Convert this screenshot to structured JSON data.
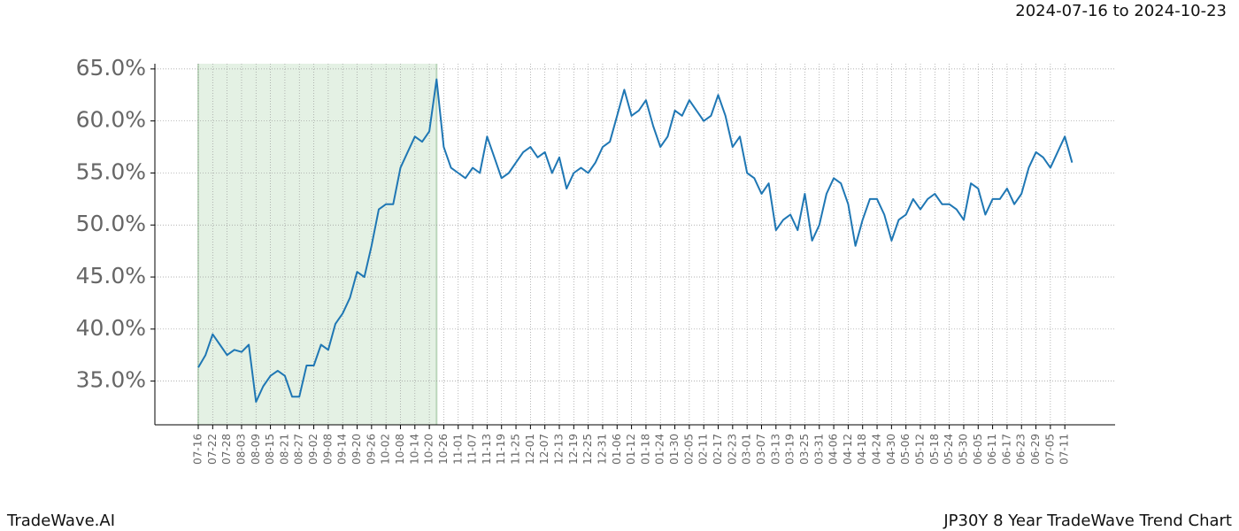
{
  "chart_data": {
    "type": "line",
    "title": "JP30Y 8 Year TradeWave Trend Chart",
    "subtitle": "2024-07-16 to 2024-10-23",
    "brand": "TradeWave.AI",
    "color": "#1f77b4",
    "highlight": [
      "07-16",
      "10-23"
    ],
    "highlight_color": "#d5e9d5",
    "grid": true,
    "ylim": [
      30.8,
      65.5
    ],
    "yticks": [
      {
        "value": 35,
        "label": "35.0%"
      },
      {
        "value": 40,
        "label": "40.0%"
      },
      {
        "value": 45,
        "label": "45.0%"
      },
      {
        "value": 50,
        "label": "50.0%"
      },
      {
        "value": 55,
        "label": "55.0%"
      },
      {
        "value": 60,
        "label": "60.0%"
      },
      {
        "value": 65,
        "label": "65.0%"
      }
    ],
    "xticks": [
      "07-16",
      "07-22",
      "07-28",
      "08-03",
      "08-09",
      "08-15",
      "08-21",
      "08-27",
      "09-02",
      "09-08",
      "09-14",
      "09-20",
      "09-26",
      "10-02",
      "10-08",
      "10-14",
      "10-20",
      "10-26",
      "11-01",
      "11-07",
      "11-13",
      "11-19",
      "11-25",
      "12-01",
      "12-07",
      "12-13",
      "12-19",
      "12-25",
      "12-31",
      "01-06",
      "01-12",
      "01-18",
      "01-24",
      "01-30",
      "02-05",
      "02-11",
      "02-17",
      "02-23",
      "03-01",
      "03-07",
      "03-13",
      "03-19",
      "03-25",
      "03-31",
      "04-06",
      "04-12",
      "04-18",
      "04-24",
      "04-30",
      "05-06",
      "05-12",
      "05-18",
      "05-24",
      "05-30",
      "06-05",
      "06-11",
      "06-17",
      "06-23",
      "06-29",
      "07-05",
      "07-11"
    ],
    "x": [
      "07-16",
      "07-19",
      "07-22",
      "07-25",
      "07-28",
      "07-31",
      "08-03",
      "08-06",
      "08-09",
      "08-12",
      "08-15",
      "08-18",
      "08-21",
      "08-24",
      "08-27",
      "08-30",
      "09-02",
      "09-05",
      "09-08",
      "09-11",
      "09-14",
      "09-17",
      "09-20",
      "09-23",
      "09-26",
      "09-29",
      "10-02",
      "10-05",
      "10-08",
      "10-11",
      "10-14",
      "10-17",
      "10-20",
      "10-23",
      "10-26",
      "10-29",
      "11-01",
      "11-04",
      "11-07",
      "11-10",
      "11-13",
      "11-16",
      "11-19",
      "11-22",
      "11-25",
      "11-28",
      "12-01",
      "12-04",
      "12-07",
      "12-10",
      "12-13",
      "12-16",
      "12-19",
      "12-22",
      "12-25",
      "12-28",
      "12-31",
      "01-03",
      "01-06",
      "01-09",
      "01-12",
      "01-15",
      "01-18",
      "01-21",
      "01-24",
      "01-27",
      "01-30",
      "02-02",
      "02-05",
      "02-08",
      "02-11",
      "02-14",
      "02-17",
      "02-20",
      "02-23",
      "02-26",
      "03-01",
      "03-04",
      "03-07",
      "03-10",
      "03-13",
      "03-16",
      "03-19",
      "03-22",
      "03-25",
      "03-28",
      "03-31",
      "04-03",
      "04-06",
      "04-09",
      "04-12",
      "04-15",
      "04-18",
      "04-21",
      "04-24",
      "04-27",
      "04-30",
      "05-03",
      "05-06",
      "05-09",
      "05-12",
      "05-15",
      "05-18",
      "05-21",
      "05-24",
      "05-27",
      "05-30",
      "06-02",
      "06-05",
      "06-08",
      "06-11",
      "06-14",
      "06-17",
      "06-20",
      "06-23",
      "06-26",
      "06-29",
      "07-02",
      "07-05",
      "07-08",
      "07-11",
      "07-14"
    ],
    "values": [
      36.3,
      37.5,
      39.5,
      38.5,
      37.5,
      38.0,
      37.8,
      38.5,
      33.0,
      34.5,
      35.5,
      36.0,
      35.5,
      33.5,
      33.5,
      36.5,
      36.5,
      38.5,
      38.0,
      40.5,
      41.5,
      43.0,
      45.5,
      45.0,
      48.0,
      51.5,
      52.0,
      52.0,
      55.5,
      57.0,
      58.5,
      58.0,
      59.0,
      64.0,
      57.5,
      55.5,
      55.0,
      54.5,
      55.5,
      55.0,
      58.5,
      56.5,
      54.5,
      55.0,
      56.0,
      57.0,
      57.5,
      56.5,
      57.0,
      55.0,
      56.5,
      53.5,
      55.0,
      55.5,
      55.0,
      56.0,
      57.5,
      58.0,
      60.5,
      63.0,
      60.5,
      61.0,
      62.0,
      59.5,
      57.5,
      58.5,
      61.0,
      60.5,
      62.0,
      61.0,
      60.0,
      60.5,
      62.5,
      60.5,
      57.5,
      58.5,
      55.0,
      54.5,
      53.0,
      54.0,
      49.5,
      50.5,
      51.0,
      49.5,
      53.0,
      48.5,
      50.0,
      53.0,
      54.5,
      54.0,
      52.0,
      48.0,
      50.5,
      52.5,
      52.5,
      51.0,
      48.5,
      50.5,
      51.0,
      52.5,
      51.5,
      52.5,
      53.0,
      52.0,
      52.0,
      51.5,
      50.5,
      54.0,
      53.5,
      51.0,
      52.5,
      52.5,
      53.5,
      52.0,
      53.0,
      55.5,
      57.0,
      56.5,
      55.5,
      57.0,
      58.5,
      56.0
    ]
  }
}
